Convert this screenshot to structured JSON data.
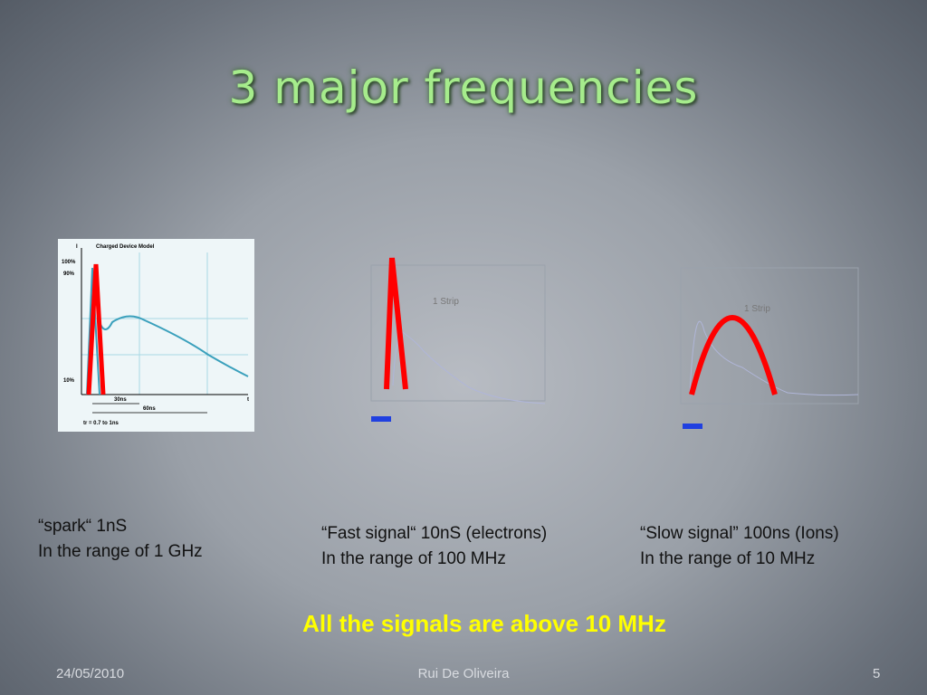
{
  "title": "3 major frequencies",
  "figures": [
    {
      "heading": "Charged Device Model",
      "axis_y": "I",
      "axis_x": "t",
      "levels": [
        "100%",
        "90%",
        "10%"
      ],
      "spans": [
        "30ns",
        "60ns"
      ],
      "rise": "tr = 0.7 to 1ns"
    },
    {
      "label": "1 Strip"
    },
    {
      "label": "1 Strip"
    }
  ],
  "captions": [
    {
      "line1": "“spark“ 1nS",
      "line2": "In the range of 1 GHz"
    },
    {
      "line1": "“Fast signal“ 10nS (electrons)",
      "line2": "In the range of 100 MHz"
    },
    {
      "line1": "“Slow signal” 100ns (Ions)",
      "line2": "In the range of 10 MHz"
    }
  ],
  "highlight": "All the signals are above 10 MHz",
  "footer": {
    "date": "24/05/2010",
    "author": "Rui De Oliveira",
    "page": "5"
  }
}
